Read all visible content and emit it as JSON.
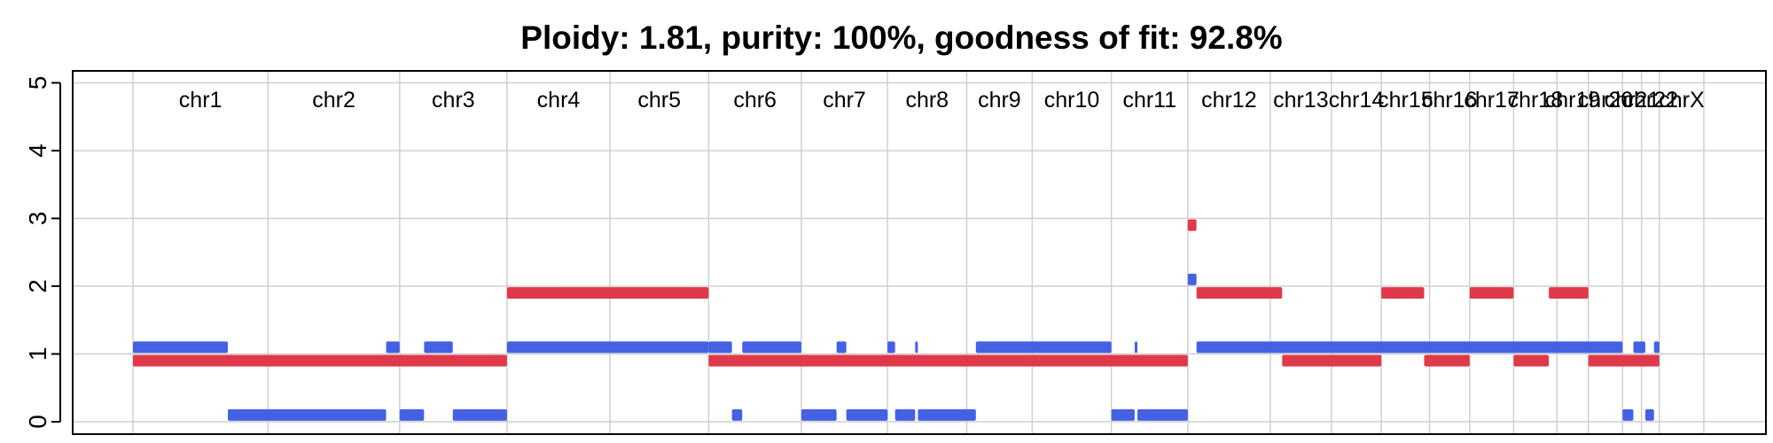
{
  "chart_data": {
    "type": "segment",
    "title": "Ploidy: 1.81, purity: 100%, goodness of fit: 92.8%",
    "xlabel": "",
    "ylabel": "",
    "ylim": [
      0,
      5
    ],
    "yticks": [
      0,
      1,
      2,
      3,
      4,
      5
    ],
    "grid": true,
    "legend": "none",
    "colors": {
      "major": "#4561e3",
      "minor": "#e0394a",
      "grid": "#cfcfcf",
      "axis": "#000000"
    },
    "genome_length_mb": 2898,
    "chromosomes": [
      {
        "name": "chr1",
        "start": 0,
        "end": 249
      },
      {
        "name": "chr2",
        "start": 249,
        "end": 492
      },
      {
        "name": "chr3",
        "start": 492,
        "end": 690
      },
      {
        "name": "chr4",
        "start": 690,
        "end": 880
      },
      {
        "name": "chr5",
        "start": 880,
        "end": 1062
      },
      {
        "name": "chr6",
        "start": 1062,
        "end": 1233
      },
      {
        "name": "chr7",
        "start": 1233,
        "end": 1392
      },
      {
        "name": "chr8",
        "start": 1392,
        "end": 1538
      },
      {
        "name": "chr9",
        "start": 1538,
        "end": 1659
      },
      {
        "name": "chr10",
        "start": 1659,
        "end": 1805
      },
      {
        "name": "chr11",
        "start": 1805,
        "end": 1946
      },
      {
        "name": "chr12",
        "start": 1946,
        "end": 2098
      },
      {
        "name": "chr13",
        "start": 2098,
        "end": 2211
      },
      {
        "name": "chr14",
        "start": 2211,
        "end": 2303
      },
      {
        "name": "chr15",
        "start": 2303,
        "end": 2392
      },
      {
        "name": "chr16",
        "start": 2392,
        "end": 2466
      },
      {
        "name": "chr17",
        "start": 2466,
        "end": 2547
      },
      {
        "name": "chr18",
        "start": 2547,
        "end": 2627
      },
      {
        "name": "chr19",
        "start": 2627,
        "end": 2685
      },
      {
        "name": "chr20",
        "start": 2685,
        "end": 2748
      },
      {
        "name": "chr21",
        "start": 2748,
        "end": 2783
      },
      {
        "name": "chr22",
        "start": 2783,
        "end": 2816
      },
      {
        "name": "chrX",
        "start": 2816,
        "end": 2898
      }
    ],
    "series": [
      {
        "name": "",
        "color": "#4561e3",
        "segments": [
          {
            "start": 0,
            "end": 175,
            "value": 1.1
          },
          {
            "start": 175,
            "end": 467,
            "value": 0.1
          },
          {
            "start": 467,
            "end": 492,
            "value": 1.1
          },
          {
            "start": 492,
            "end": 537,
            "value": 0.1
          },
          {
            "start": 537,
            "end": 590,
            "value": 1.1
          },
          {
            "start": 590,
            "end": 690,
            "value": 0.1
          },
          {
            "start": 690,
            "end": 1062,
            "value": 1.1
          },
          {
            "start": 1062,
            "end": 1105,
            "value": 1.1
          },
          {
            "start": 1105,
            "end": 1124,
            "value": 0.1
          },
          {
            "start": 1124,
            "end": 1233,
            "value": 1.1
          },
          {
            "start": 1233,
            "end": 1298,
            "value": 0.1
          },
          {
            "start": 1298,
            "end": 1316,
            "value": 1.1
          },
          {
            "start": 1316,
            "end": 1392,
            "value": 0.1
          },
          {
            "start": 1392,
            "end": 1406,
            "value": 1.1
          },
          {
            "start": 1406,
            "end": 1443,
            "value": 0.1
          },
          {
            "start": 1443,
            "end": 1448,
            "value": 1.1
          },
          {
            "start": 1448,
            "end": 1555,
            "value": 0.1
          },
          {
            "start": 1555,
            "end": 1805,
            "value": 1.1
          },
          {
            "start": 1805,
            "end": 1848,
            "value": 0.1
          },
          {
            "start": 1848,
            "end": 1853,
            "value": 1.1
          },
          {
            "start": 1853,
            "end": 1946,
            "value": 0.1
          },
          {
            "start": 1946,
            "end": 1962,
            "value": 2.1
          },
          {
            "start": 1962,
            "end": 2748,
            "value": 1.1
          },
          {
            "start": 2748,
            "end": 2768,
            "value": 0.1
          },
          {
            "start": 2768,
            "end": 2790,
            "value": 1.1
          },
          {
            "start": 2790,
            "end": 2806,
            "value": 0.1
          },
          {
            "start": 2806,
            "end": 2816,
            "value": 1.1
          }
        ]
      },
      {
        "name": "",
        "color": "#e0394a",
        "segments": [
          {
            "start": 0,
            "end": 690,
            "value": 0.9
          },
          {
            "start": 690,
            "end": 1062,
            "value": 1.9
          },
          {
            "start": 1062,
            "end": 1946,
            "value": 0.9
          },
          {
            "start": 1946,
            "end": 1962,
            "value": 2.9
          },
          {
            "start": 1962,
            "end": 2120,
            "value": 1.9
          },
          {
            "start": 2120,
            "end": 2303,
            "value": 0.9
          },
          {
            "start": 2303,
            "end": 2382,
            "value": 1.9
          },
          {
            "start": 2382,
            "end": 2466,
            "value": 0.9
          },
          {
            "start": 2466,
            "end": 2547,
            "value": 1.9
          },
          {
            "start": 2547,
            "end": 2612,
            "value": 0.9
          },
          {
            "start": 2612,
            "end": 2685,
            "value": 1.9
          },
          {
            "start": 2685,
            "end": 2816,
            "value": 0.9
          }
        ]
      }
    ]
  }
}
